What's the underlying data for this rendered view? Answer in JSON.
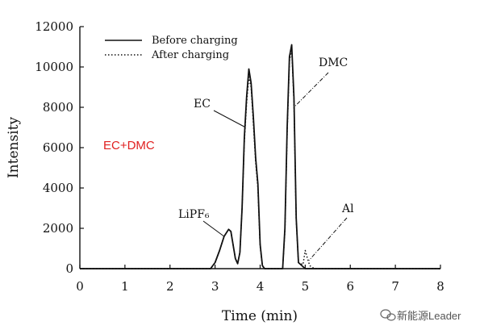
{
  "chart_data": {
    "type": "line",
    "xlabel": "Time (min)",
    "ylabel": "Intensity",
    "xlim": [
      0,
      8
    ],
    "ylim": [
      0,
      12000
    ],
    "xticks": [
      "0",
      "1",
      "2",
      "3",
      "4",
      "5",
      "6",
      "7",
      "8"
    ],
    "yticks": [
      "0",
      "2000",
      "4000",
      "6000",
      "8000",
      "10000",
      "12000"
    ],
    "grid": false,
    "legend_position": "top-left",
    "series": [
      {
        "name": "Before charging",
        "style": "solid",
        "color": "#111111",
        "x": [
          0.0,
          1.0,
          2.0,
          2.9,
          3.0,
          3.1,
          3.2,
          3.3,
          3.35,
          3.45,
          3.5,
          3.55,
          3.6,
          3.65,
          3.7,
          3.75,
          3.8,
          3.85,
          3.9,
          3.95,
          4.0,
          4.05,
          4.1,
          4.3,
          4.5,
          4.55,
          4.6,
          4.65,
          4.7,
          4.75,
          4.8,
          4.85,
          5.0,
          6.0,
          8.0
        ],
        "y": [
          0,
          0,
          0,
          0,
          300,
          900,
          1600,
          1950,
          1850,
          500,
          250,
          800,
          3000,
          6500,
          8500,
          9900,
          9200,
          7500,
          5500,
          4200,
          1200,
          150,
          0,
          0,
          0,
          2000,
          7000,
          10500,
          11100,
          8500,
          2500,
          300,
          0,
          0,
          0
        ]
      },
      {
        "name": "After charging",
        "style": "dotted",
        "color": "#111111",
        "x": [
          0.0,
          1.0,
          2.0,
          2.9,
          3.0,
          3.1,
          3.2,
          3.3,
          3.35,
          3.45,
          3.5,
          3.55,
          3.6,
          3.65,
          3.7,
          3.75,
          3.8,
          3.85,
          3.9,
          3.95,
          4.0,
          4.05,
          4.1,
          4.3,
          4.5,
          4.55,
          4.6,
          4.65,
          4.7,
          4.75,
          4.8,
          4.85,
          4.95,
          5.0,
          5.05,
          5.1,
          5.2,
          6.0,
          8.0
        ],
        "y": [
          0,
          0,
          0,
          0,
          300,
          900,
          1600,
          1950,
          1850,
          500,
          250,
          800,
          3000,
          6300,
          8200,
          9500,
          9000,
          7200,
          5300,
          4000,
          1100,
          150,
          0,
          0,
          0,
          1900,
          6800,
          10300,
          10900,
          8300,
          2400,
          300,
          200,
          900,
          500,
          150,
          0,
          0,
          0
        ]
      }
    ],
    "annotations": [
      {
        "label": "LiPF₆",
        "x": 3.3,
        "y": 1950
      },
      {
        "label": "EC",
        "x": 3.7,
        "y": 7500
      },
      {
        "label": "DMC",
        "x": 4.8,
        "y": 8000
      },
      {
        "label": "Al",
        "x": 5.05,
        "y": 500
      }
    ]
  },
  "sample_label": "EC+DMC",
  "watermark": "新能源Leader"
}
